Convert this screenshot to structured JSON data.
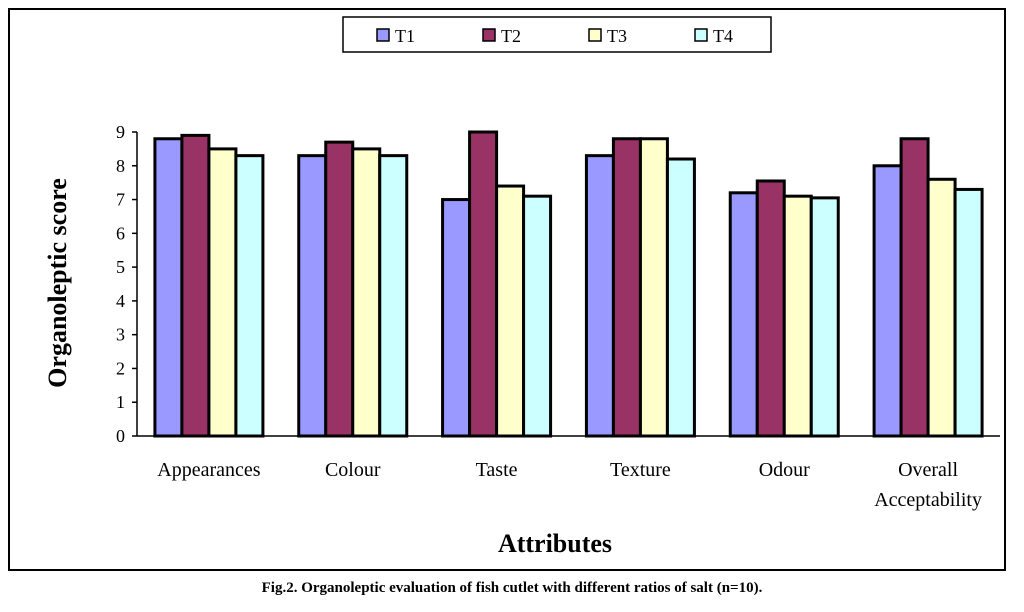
{
  "chart_data": {
    "type": "bar",
    "title": "",
    "xlabel": "Attributes",
    "ylabel": "Organoleptic score",
    "ylim": [
      0,
      9
    ],
    "yticks": [
      "0",
      "1",
      "2",
      "3",
      "4",
      "5",
      "6",
      "7",
      "8",
      "9"
    ],
    "categories": [
      "Appearances",
      "Colour",
      "Taste",
      "Texture",
      "Odour",
      "Overall Acceptability"
    ],
    "series": [
      {
        "name": "T1",
        "color": "#9999FF",
        "values": [
          8.8,
          8.3,
          7.0,
          8.3,
          7.2,
          8.0
        ]
      },
      {
        "name": "T2",
        "color": "#993366",
        "values": [
          8.9,
          8.7,
          9.0,
          8.8,
          7.55,
          8.8
        ]
      },
      {
        "name": "T3",
        "color": "#FFFFCC",
        "values": [
          8.5,
          8.5,
          7.4,
          8.8,
          7.1,
          7.6
        ]
      },
      {
        "name": "T4",
        "color": "#CCFFFF",
        "values": [
          8.3,
          8.3,
          7.1,
          8.2,
          7.05,
          7.3
        ]
      }
    ],
    "legend_position": "top-center",
    "grid": false
  },
  "caption": "Fig.2. Organoleptic evaluation of fish cutlet with different ratios of salt (n=10)."
}
